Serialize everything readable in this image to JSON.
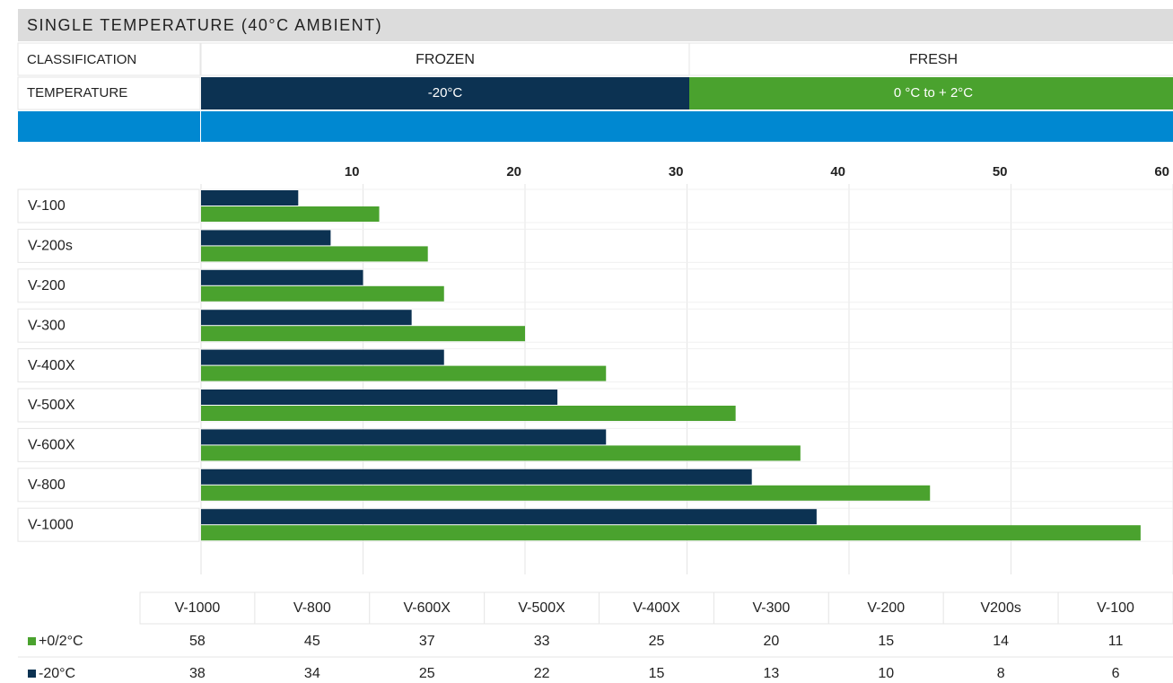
{
  "header": {
    "title": "SINGLE TEMPERATURE (40°C AMBIENT)",
    "classification_label": "CLASSIFICATION",
    "temperature_label": "TEMPERATURE",
    "classifications": [
      "FROZEN",
      "FRESH"
    ],
    "temperatures": [
      "-20°C",
      "0 °C to + 2°C"
    ]
  },
  "chart_data": {
    "type": "barh",
    "categories": [
      "V-100",
      "V-200s",
      "V-200",
      "V-300",
      "V-400X",
      "V-500X",
      "V-600X",
      "V-800",
      "V-1000"
    ],
    "series": [
      {
        "name": "-20°C",
        "color": "#0c3252",
        "values": [
          6,
          8,
          10,
          13,
          15,
          22,
          25,
          34,
          38
        ]
      },
      {
        "name": "+0/2°C",
        "color": "#4aa22e",
        "values": [
          11,
          14,
          15,
          20,
          25,
          33,
          37,
          45,
          58
        ]
      }
    ],
    "xlim": [
      0,
      60
    ],
    "xticks": [
      10,
      20,
      30,
      40,
      50,
      60
    ],
    "grid": true
  },
  "table": {
    "columns": [
      "V-1000",
      "V-800",
      "V-600X",
      "V-500X",
      "V-400X",
      "V-300",
      "V-200",
      "V200s",
      "V-100"
    ]
  }
}
